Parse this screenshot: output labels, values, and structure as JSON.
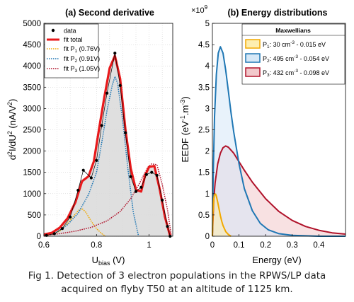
{
  "caption": {
    "line1": "Fig 1. Detection of 3 electron populations in the RPWS/LP data",
    "line2": "acquired on flyby T50 at an altitude of 1125 km."
  },
  "colors": {
    "data": "#000000",
    "fit_total": "#e8191b",
    "p1": "#f2a900",
    "p2": "#1f77b4",
    "p3": "#b0122a",
    "fill_gray": "#d9d9d9",
    "legend_p1_fill": "#fdeeb0",
    "legend_p2_fill": "#d6e8f7",
    "legend_p3_fill": "#f2c8cb"
  },
  "chart_data": [
    {
      "type": "line",
      "title": "(a) Second derivative",
      "xlabel": "U_bias (V)",
      "ylabel": "d²I/dU² (nA/V²)",
      "xlim": [
        0.6,
        1.09
      ],
      "ylim": [
        0,
        5000
      ],
      "x_ticks": [
        "0.6",
        "0.8",
        "1"
      ],
      "y_ticks": [
        "0",
        "500",
        "1000",
        "1500",
        "2000",
        "2500",
        "3000",
        "3500",
        "4000",
        "4500",
        "5000"
      ],
      "grid": true,
      "legend_placement": "top-left",
      "series": [
        {
          "name": "data",
          "style": "dots-thin-line",
          "x": [
            0.61,
            0.64,
            0.67,
            0.7,
            0.73,
            0.75,
            0.78,
            0.8,
            0.82,
            0.84,
            0.87,
            0.89,
            0.91,
            0.93,
            0.95,
            0.97,
            0.99,
            1.01,
            1.03,
            1.05,
            1.07,
            1.08
          ],
          "y": [
            20,
            60,
            180,
            450,
            1080,
            1550,
            1370,
            1780,
            2600,
            3360,
            4300,
            3540,
            2430,
            1400,
            1050,
            1150,
            1450,
            1500,
            1430,
            850,
            230,
            0
          ]
        },
        {
          "name": "fit total",
          "style": "thick-line",
          "x": [
            0.6,
            0.63,
            0.66,
            0.69,
            0.72,
            0.745,
            0.77,
            0.79,
            0.81,
            0.83,
            0.85,
            0.87,
            0.89,
            0.91,
            0.93,
            0.95,
            0.97,
            0.985,
            1.0,
            1.02,
            1.04,
            1.06,
            1.08
          ],
          "y": [
            40,
            80,
            200,
            420,
            800,
            1290,
            1410,
            1760,
            2530,
            3270,
            3950,
            4240,
            3700,
            2520,
            1600,
            1090,
            1050,
            1430,
            1630,
            1650,
            1120,
            460,
            0
          ]
        },
        {
          "name": "fit P_1 (0.76V)",
          "style": "dotted",
          "x": [
            0.6,
            0.63,
            0.66,
            0.69,
            0.71,
            0.73,
            0.745,
            0.76,
            0.78,
            0.8,
            0.82,
            0.835
          ],
          "y": [
            10,
            40,
            120,
            300,
            450,
            600,
            650,
            560,
            350,
            180,
            60,
            0
          ]
        },
        {
          "name": "fit P_2 (0.91V)",
          "style": "dotted",
          "x": [
            0.6,
            0.65,
            0.69,
            0.73,
            0.77,
            0.8,
            0.82,
            0.84,
            0.86,
            0.87,
            0.88,
            0.9,
            0.92,
            0.94,
            0.96
          ],
          "y": [
            20,
            100,
            270,
            540,
            980,
            1500,
            2200,
            2950,
            3550,
            3750,
            3600,
            2700,
            1550,
            560,
            0
          ]
        },
        {
          "name": "fit P_3 (1.05V)",
          "style": "dotted",
          "x": [
            0.6,
            0.66,
            0.72,
            0.78,
            0.84,
            0.89,
            0.93,
            0.96,
            0.98,
            0.995,
            1.01,
            1.03,
            1.05,
            1.07,
            1.085
          ],
          "y": [
            20,
            60,
            120,
            210,
            360,
            580,
            880,
            1200,
            1440,
            1620,
            1700,
            1680,
            1220,
            620,
            0
          ]
        }
      ]
    },
    {
      "type": "area",
      "title": "(b) Energy distributions",
      "xlabel": "Energy (eV)",
      "ylabel": "EEDF (eV⁻¹.m⁻³)",
      "y_multiplier": "×10⁹",
      "xlim": [
        0,
        0.5
      ],
      "ylim": [
        0,
        5
      ],
      "x_ticks": [
        "0",
        "0.1",
        "0.2",
        "0.3",
        "0.4"
      ],
      "y_ticks": [
        "0",
        "0.5",
        "1",
        "1.5",
        "2",
        "2.5",
        "3",
        "3.5",
        "4",
        "4.5",
        "5"
      ],
      "grid": false,
      "legend_title": "Maxwellians",
      "legend_placement": "top-right",
      "series": [
        {
          "name": "P_1: 30 cm⁻³ - 0.015 eV",
          "x": [
            0,
            0.002,
            0.005,
            0.008,
            0.012,
            0.015,
            0.02,
            0.025,
            0.03,
            0.035,
            0.04,
            0.05,
            0.06,
            0.07
          ],
          "y": [
            0,
            0.55,
            0.88,
            0.98,
            0.99,
            0.94,
            0.8,
            0.64,
            0.48,
            0.35,
            0.25,
            0.11,
            0.04,
            0.0
          ]
        },
        {
          "name": "P_2: 495 cm⁻³ - 0.054 eV",
          "x": [
            0,
            0.003,
            0.008,
            0.015,
            0.022,
            0.03,
            0.04,
            0.05,
            0.06,
            0.07,
            0.08,
            0.1,
            0.12,
            0.15,
            0.18,
            0.21,
            0.25,
            0.3,
            0.4,
            0.5
          ],
          "y": [
            0,
            1.4,
            2.8,
            3.8,
            4.3,
            4.45,
            4.3,
            3.9,
            3.4,
            2.9,
            2.45,
            1.7,
            1.12,
            0.6,
            0.3,
            0.15,
            0.06,
            0.02,
            0.0,
            0.0
          ]
        },
        {
          "name": "P_3: 432 cm⁻³ - 0.098 eV",
          "x": [
            0,
            0.005,
            0.01,
            0.02,
            0.03,
            0.04,
            0.05,
            0.06,
            0.08,
            0.1,
            0.12,
            0.15,
            0.2,
            0.25,
            0.3,
            0.35,
            0.4,
            0.45,
            0.5
          ],
          "y": [
            0,
            0.85,
            1.25,
            1.7,
            1.95,
            2.08,
            2.12,
            2.09,
            1.95,
            1.75,
            1.55,
            1.27,
            0.88,
            0.58,
            0.37,
            0.23,
            0.14,
            0.08,
            0.05
          ]
        }
      ]
    }
  ]
}
